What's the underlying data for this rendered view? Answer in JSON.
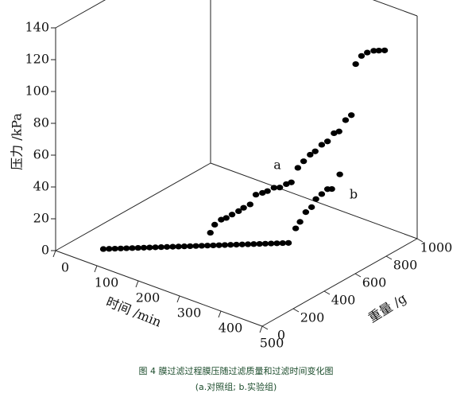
{
  "chart_data": {
    "type": "scatter3d",
    "title": "图 4 膜过滤过程膜压随过滤质量和过滤时间变化图",
    "subtitle": "(a.对照组; b.实验组)",
    "x_label": "时间 /min",
    "y_label": "重量 /g",
    "z_label": "压力 /kPa",
    "xlim": [
      0,
      500
    ],
    "xticks": [
      0,
      100,
      200,
      300,
      400,
      500
    ],
    "ylim": [
      0,
      1000
    ],
    "yticks": [
      0,
      200,
      400,
      600,
      800,
      1000
    ],
    "zlim": [
      0,
      140
    ],
    "zticks": [
      0,
      20,
      40,
      60,
      80,
      100,
      120,
      140
    ],
    "series": [
      {
        "name": "a",
        "color": "#000000",
        "x": [
          214,
          220,
          229,
          236,
          244,
          253,
          260,
          269,
          277,
          286,
          293,
          302,
          310,
          319,
          326,
          335,
          343,
          352,
          359,
          368,
          376,
          385,
          392,
          401,
          409,
          415,
          423,
          431,
          440,
          447,
          455
        ],
        "y": [
          428,
          440,
          458,
          472,
          488,
          506,
          520,
          538,
          554,
          572,
          586,
          604,
          620,
          638,
          652,
          670,
          686,
          704,
          718,
          736,
          752,
          770,
          784,
          802,
          818,
          830,
          846,
          862,
          880,
          894,
          910
        ],
        "z": [
          8,
          13,
          16,
          17,
          19,
          21,
          23,
          25,
          31,
          32,
          33,
          35,
          35,
          37,
          38,
          47,
          51,
          55,
          57,
          61,
          63,
          68,
          69,
          76,
          79,
          111,
          116,
          118,
          119,
          119,
          119
        ]
      },
      {
        "name": "b",
        "color": "#000000",
        "x": [
          66,
          74,
          82,
          90,
          98,
          106,
          114,
          122,
          130,
          138,
          146,
          154,
          162,
          170,
          178,
          186,
          194,
          202,
          210,
          218,
          226,
          234,
          242,
          250,
          258,
          266,
          274,
          282,
          290,
          298,
          306,
          314,
          322,
          332,
          338,
          346,
          354,
          360,
          368,
          376,
          382,
          393
        ],
        "y": [
          132,
          148,
          164,
          180,
          196,
          212,
          228,
          244,
          260,
          276,
          292,
          308,
          324,
          340,
          356,
          372,
          388,
          404,
          420,
          436,
          452,
          468,
          484,
          500,
          516,
          532,
          548,
          564,
          580,
          596,
          612,
          628,
          644,
          664,
          676,
          692,
          708,
          720,
          736,
          752,
          764,
          786
        ],
        "z": [
          0,
          0,
          0,
          0,
          0,
          0,
          0,
          0,
          0,
          0,
          0,
          0,
          0,
          0,
          0,
          0,
          0,
          0,
          0,
          0,
          0,
          0,
          0,
          0,
          0,
          0,
          0,
          0,
          0,
          0,
          0,
          0,
          0,
          9,
          13,
          19,
          22,
          27,
          30,
          33,
          33,
          42
        ]
      }
    ]
  }
}
